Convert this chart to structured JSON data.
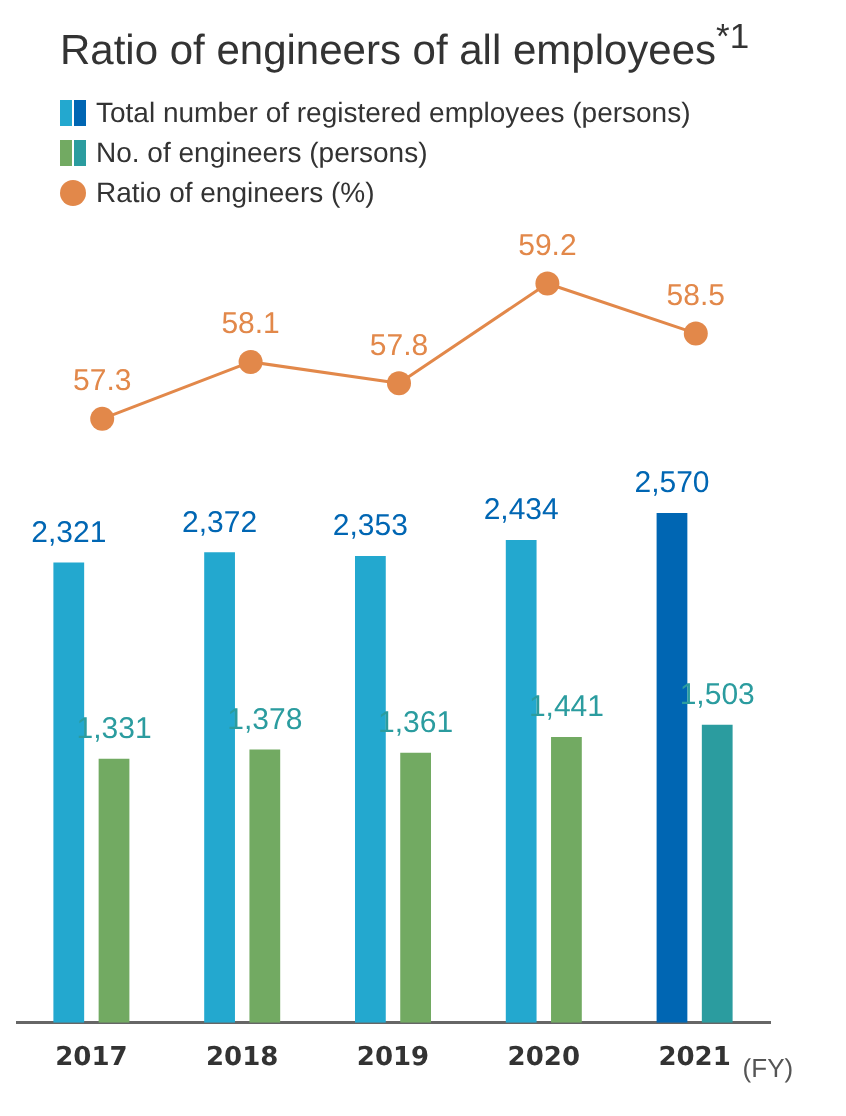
{
  "chart_data": [
    {
      "type": "line",
      "title": "Ratio of engineers of all employees$^{*1}$",
      "categories": [
        "2017",
        "2018",
        "2019",
        "2020",
        "2021"
      ],
      "tick_labels": false,
      "legend": "top left",
      "grid": false,
      "marker": "circle",
      "data_labels": true,
      "series": [
        {
          "name": "Ratio of engineers (%)",
          "color": "#e2884a",
          "values": [
            57.3,
            58.1,
            57.8,
            59.2,
            58.5
          ]
        }
      ]
    },
    {
      "type": "bar",
      "categories": [
        "2017",
        "2018",
        "2019",
        "2020",
        "2021"
      ],
      "legend": "top left",
      "grid": false,
      "annotations": [
        "(FY)"
      ],
      "series": [
        {
          "name": "Total number of registered employees (persons)",
          "colors": [
            "#23a8cf",
            "#23a8cf",
            "#23a8cf",
            "#23a8cf",
            "#0066b3"
          ],
          "values": [
            2321,
            2372,
            2353,
            2434,
            2570
          ],
          "value_labels": [
            "2,321",
            "2,372",
            "2,353",
            "2,434",
            "2,570"
          ]
        },
        {
          "name": "No. of engineers (persons)",
          "colors": [
            "#72aa62",
            "#72aa62",
            "#72aa62",
            "#72aa62",
            "#2b9c9f"
          ],
          "values": [
            1331,
            1378,
            1361,
            1441,
            1503
          ],
          "value_labels": [
            "1,331",
            "1,378",
            "1,361",
            "1,441",
            "1,503"
          ]
        }
      ]
    }
  ]
}
